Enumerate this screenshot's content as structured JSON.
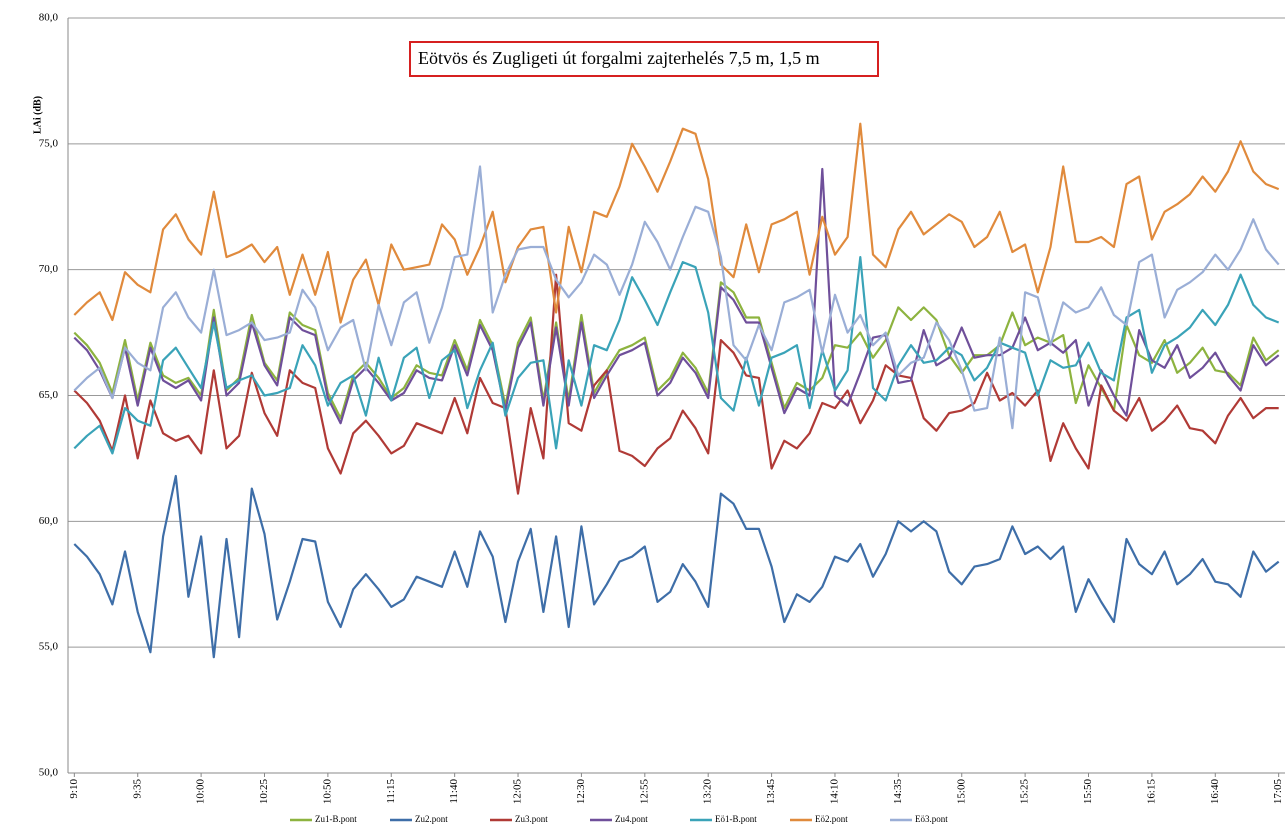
{
  "chart_data": {
    "type": "line",
    "title": "Eötvös és Zugligeti út forgalmi zajterhelés 7,5 m, 1,5 m",
    "y_label": "LAi (dB)",
    "categories": [
      "9:10",
      null,
      null,
      null,
      null,
      "9:35",
      null,
      null,
      null,
      null,
      "10:00",
      null,
      null,
      null,
      null,
      "10:25",
      null,
      null,
      null,
      null,
      "10:50",
      null,
      null,
      null,
      null,
      "11:15",
      null,
      null,
      null,
      null,
      "11:40",
      null,
      null,
      null,
      null,
      "12:05",
      null,
      null,
      null,
      null,
      "12:30",
      null,
      null,
      null,
      null,
      "12:55",
      null,
      null,
      null,
      null,
      "13:20",
      null,
      null,
      null,
      null,
      "13:45",
      null,
      null,
      null,
      null,
      "14:10",
      null,
      null,
      null,
      null,
      "14:35",
      null,
      null,
      null,
      null,
      "15:00",
      null,
      null,
      null,
      null,
      "15:25",
      null,
      null,
      null,
      null,
      "15:50",
      null,
      null,
      null,
      null,
      "16:15",
      null,
      null,
      null,
      null,
      "16:40",
      null,
      null,
      null,
      null,
      "17:05"
    ],
    "ylim": [
      50,
      80
    ],
    "yticks": [
      {
        "value": 50,
        "label": "50,0"
      },
      {
        "value": 55,
        "label": "55,0"
      },
      {
        "value": 60,
        "label": "60,0"
      },
      {
        "value": 65,
        "label": "65,0"
      },
      {
        "value": 70,
        "label": "70,0"
      },
      {
        "value": 75,
        "label": "75,0"
      },
      {
        "value": 80,
        "label": "80,0"
      }
    ],
    "grid": true,
    "legend": "bottom",
    "series": [
      {
        "name": "Zu1-B.pont",
        "color": "#8db33f",
        "values": [
          67.5,
          67.0,
          66.3,
          65.1,
          67.2,
          64.8,
          67.1,
          65.8,
          65.5,
          65.7,
          65.0,
          68.4,
          65.2,
          65.7,
          68.2,
          66.3,
          65.6,
          68.3,
          67.8,
          67.6,
          65.1,
          64.1,
          65.8,
          66.3,
          65.7,
          64.9,
          65.3,
          66.2,
          65.9,
          65.8,
          67.2,
          66.0,
          68.0,
          67.0,
          64.6,
          67.1,
          68.1,
          64.8,
          67.9,
          64.8,
          68.2,
          65.1,
          66.0,
          66.8,
          67.0,
          67.3,
          65.2,
          65.7,
          66.7,
          66.1,
          65.1,
          69.5,
          69.1,
          68.1,
          68.1,
          66.3,
          64.5,
          65.5,
          65.2,
          65.7,
          67.0,
          66.9,
          67.5,
          66.5,
          67.2,
          68.5,
          68.0,
          68.5,
          68.0,
          66.6,
          65.9,
          66.6,
          66.6,
          67.0,
          68.3,
          67.0,
          67.3,
          67.1,
          67.4,
          64.7,
          66.2,
          65.3,
          64.4,
          67.8,
          66.6,
          66.3,
          67.2,
          65.9,
          66.3,
          66.9,
          66.0,
          65.9,
          65.4,
          67.3,
          66.4,
          66.8
        ]
      },
      {
        "name": "Zu2.pont",
        "color": "#3e6ea8",
        "values": [
          59.1,
          58.6,
          57.9,
          56.7,
          58.8,
          56.4,
          54.8,
          59.4,
          61.8,
          57.0,
          59.4,
          54.6,
          59.3,
          55.4,
          61.3,
          59.5,
          56.1,
          57.6,
          59.3,
          59.2,
          56.8,
          55.8,
          57.3,
          57.9,
          57.3,
          56.6,
          56.9,
          57.8,
          57.6,
          57.4,
          58.8,
          57.4,
          59.6,
          58.6,
          56.0,
          58.4,
          59.7,
          56.4,
          59.4,
          55.8,
          59.8,
          56.7,
          57.5,
          58.4,
          58.6,
          59.0,
          56.8,
          57.2,
          58.3,
          57.6,
          56.6,
          61.1,
          60.7,
          59.7,
          59.7,
          58.2,
          56.0,
          57.1,
          56.8,
          57.4,
          58.6,
          58.4,
          59.1,
          57.8,
          58.7,
          60.0,
          59.6,
          60.0,
          59.6,
          58.0,
          57.5,
          58.2,
          58.3,
          58.5,
          59.8,
          58.7,
          59.0,
          58.5,
          59.0,
          56.4,
          57.7,
          56.8,
          56.0,
          59.3,
          58.3,
          57.9,
          58.8,
          57.5,
          57.9,
          58.5,
          57.6,
          57.5,
          57.0,
          58.8,
          58.0,
          58.4
        ]
      },
      {
        "name": "Zu3.pont",
        "color": "#b03a36",
        "values": [
          65.2,
          64.7,
          64.0,
          62.8,
          65.0,
          62.5,
          64.8,
          63.5,
          63.2,
          63.4,
          62.7,
          66.0,
          62.9,
          63.4,
          65.9,
          64.3,
          63.4,
          66.0,
          65.5,
          65.3,
          62.9,
          61.9,
          63.5,
          64.0,
          63.4,
          62.7,
          63.0,
          63.9,
          63.7,
          63.5,
          64.9,
          63.5,
          65.7,
          64.7,
          64.5,
          61.1,
          64.5,
          62.5,
          69.8,
          63.9,
          63.6,
          65.4,
          66.0,
          62.8,
          62.6,
          62.2,
          62.9,
          63.3,
          64.4,
          63.7,
          62.7,
          67.2,
          66.7,
          65.8,
          65.7,
          62.1,
          63.2,
          62.9,
          63.5,
          64.7,
          64.5,
          65.2,
          63.9,
          64.8,
          66.2,
          65.8,
          65.7,
          64.1,
          63.6,
          64.3,
          64.4,
          64.7,
          65.9,
          64.8,
          65.1,
          64.6,
          65.2,
          62.4,
          63.9,
          62.9,
          62.1,
          65.4,
          64.4,
          64.0,
          64.9,
          63.6,
          64.0,
          64.6,
          63.7,
          63.6,
          63.1,
          64.2,
          64.9,
          64.1,
          64.5,
          64.5
        ]
      },
      {
        "name": "Zu4.pont",
        "color": "#6f4f9a",
        "values": [
          67.3,
          66.8,
          66.0,
          64.9,
          66.9,
          64.6,
          66.9,
          65.6,
          65.3,
          65.6,
          64.8,
          68.1,
          65.0,
          65.5,
          67.9,
          66.2,
          65.4,
          68.1,
          67.6,
          67.4,
          64.9,
          63.9,
          65.6,
          66.1,
          65.5,
          64.8,
          65.1,
          66.0,
          65.7,
          65.6,
          67.0,
          65.8,
          67.8,
          66.8,
          64.4,
          66.9,
          67.9,
          64.6,
          67.7,
          64.6,
          67.9,
          64.9,
          65.8,
          66.6,
          66.8,
          67.1,
          65.0,
          65.5,
          66.5,
          65.9,
          64.9,
          69.3,
          68.8,
          67.9,
          67.9,
          66.1,
          64.3,
          65.3,
          65.0,
          74.0,
          65.0,
          64.6,
          65.9,
          67.3,
          67.4,
          65.5,
          65.6,
          67.6,
          66.2,
          66.5,
          67.7,
          66.5,
          66.6,
          66.6,
          66.9,
          68.1,
          66.8,
          67.1,
          66.7,
          67.2,
          64.6,
          66.0,
          65.0,
          64.2,
          67.6,
          66.4,
          66.1,
          67.0,
          65.7,
          66.1,
          66.7,
          65.8,
          65.2,
          67.0,
          66.2,
          66.6
        ]
      },
      {
        "name": "Eö1-B.pont",
        "color": "#3aa3b8",
        "values": [
          62.9,
          63.4,
          63.8,
          62.7,
          64.5,
          64.0,
          63.8,
          66.4,
          66.9,
          66.1,
          65.3,
          67.9,
          65.3,
          65.6,
          65.8,
          65.0,
          65.1,
          65.3,
          67.0,
          66.2,
          64.6,
          65.5,
          65.8,
          64.2,
          66.5,
          64.8,
          66.5,
          66.9,
          64.9,
          66.4,
          66.8,
          64.5,
          66.0,
          67.1,
          64.2,
          65.7,
          66.3,
          66.4,
          62.9,
          66.4,
          64.6,
          67.0,
          66.8,
          68.0,
          69.7,
          68.8,
          67.8,
          69.1,
          70.3,
          70.1,
          68.3,
          64.9,
          64.4,
          66.5,
          64.6,
          66.5,
          66.7,
          67.0,
          64.5,
          66.8,
          65.2,
          66.0,
          70.5,
          65.3,
          64.8,
          66.2,
          67.0,
          66.3,
          66.4,
          66.9,
          66.6,
          65.6,
          66.1,
          67.1,
          66.9,
          66.7,
          65.0,
          66.4,
          66.1,
          66.2,
          67.1,
          65.9,
          65.6,
          68.1,
          68.4,
          65.9,
          67.0,
          67.3,
          67.7,
          68.4,
          67.8,
          68.6,
          69.8,
          68.6,
          68.1,
          67.9
        ]
      },
      {
        "name": "Eö2.pont",
        "color": "#e08a3c",
        "values": [
          68.2,
          68.7,
          69.1,
          68.0,
          69.9,
          69.4,
          69.1,
          71.6,
          72.2,
          71.2,
          70.6,
          73.1,
          70.5,
          70.7,
          71.0,
          70.3,
          70.9,
          69.0,
          70.6,
          69.0,
          70.7,
          67.9,
          69.6,
          70.4,
          68.6,
          71.0,
          70.0,
          70.1,
          70.2,
          71.8,
          71.2,
          69.8,
          70.9,
          72.3,
          69.5,
          70.9,
          71.6,
          71.7,
          68.3,
          71.7,
          69.9,
          72.3,
          72.1,
          73.3,
          75.0,
          74.1,
          73.1,
          74.3,
          75.6,
          75.4,
          73.6,
          70.2,
          69.7,
          71.8,
          69.9,
          71.8,
          72.0,
          72.3,
          69.8,
          72.1,
          70.6,
          71.3,
          75.8,
          70.6,
          70.1,
          71.6,
          72.3,
          71.4,
          71.8,
          72.2,
          71.9,
          70.9,
          71.3,
          72.3,
          70.7,
          71.0,
          69.1,
          70.9,
          74.1,
          71.1,
          71.1,
          71.3,
          70.9,
          73.4,
          73.7,
          71.2,
          72.3,
          72.6,
          73.0,
          73.7,
          73.1,
          73.9,
          75.1,
          73.9,
          73.4,
          73.2
        ]
      },
      {
        "name": "Eö3.pont",
        "color": "#9aaed6",
        "values": [
          65.2,
          65.7,
          66.1,
          64.9,
          66.9,
          66.3,
          66.0,
          68.5,
          69.1,
          68.1,
          67.5,
          70.0,
          67.4,
          67.6,
          67.9,
          67.2,
          67.3,
          67.5,
          69.2,
          68.5,
          66.8,
          67.7,
          68.0,
          66.0,
          68.6,
          67.0,
          68.7,
          69.1,
          67.1,
          68.5,
          70.5,
          70.6,
          74.1,
          68.3,
          69.8,
          70.8,
          70.9,
          70.9,
          69.6,
          68.9,
          69.5,
          70.6,
          70.2,
          69.0,
          70.2,
          71.9,
          71.1,
          70.0,
          71.3,
          72.5,
          72.3,
          70.5,
          67.0,
          66.4,
          67.8,
          66.8,
          68.7,
          68.9,
          69.2,
          66.7,
          69.0,
          67.5,
          68.2,
          67.0,
          67.5,
          65.8,
          66.3,
          66.5,
          67.9,
          67.2,
          66.0,
          64.4,
          64.5,
          67.3,
          63.7,
          69.1,
          68.9,
          67.0,
          68.7,
          68.3,
          68.5,
          69.3,
          68.2,
          67.8,
          70.3,
          70.6,
          68.1,
          69.2,
          69.5,
          69.9,
          70.6,
          70.0,
          70.8,
          72.0,
          70.8,
          70.2
        ]
      }
    ]
  }
}
